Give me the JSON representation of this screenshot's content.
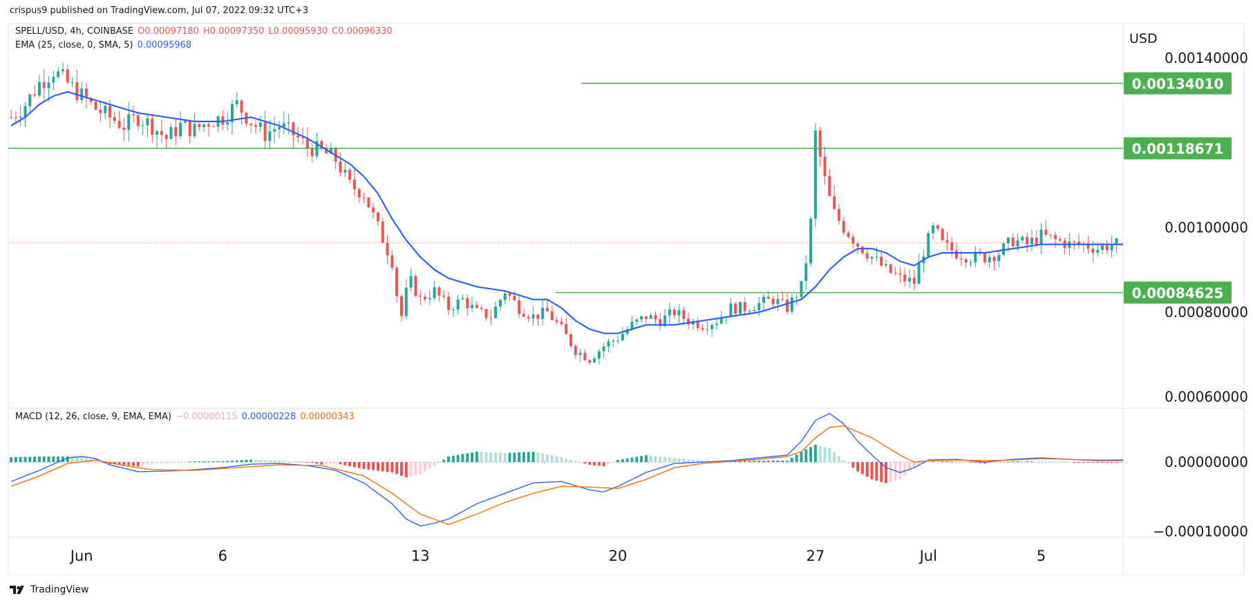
{
  "header": {
    "publisher_line": "crispus9 published on TradingView.com, Jul 07, 2022 09:32 UTC+3"
  },
  "legend": {
    "symbol": "SPELL/USD, 4h, COINBASE",
    "open": "O0.00097180",
    "high": "H0.00097350",
    "low": "L0.00095930",
    "close": "C0.00096330",
    "ema_label": "EMA (25, close, 0, SMA, 5)",
    "ema_value": "0.00095968",
    "macd_label": "MACD (12, 26, close, 9, EMA, EMA)",
    "macd_hist": "−0.00000115",
    "macd_line": "0.00000228",
    "macd_signal": "0.00000343"
  },
  "footer": {
    "brand": "TradingView"
  },
  "colors": {
    "up": "#26a69a",
    "down": "#ef5350",
    "ema": "#2962ff",
    "level": "#4caf50",
    "level_label_bg": "#4caf50",
    "macd_line": "#2962ff",
    "signal_line": "#ff6d00",
    "hist_up_strong": "#26a69a",
    "hist_up_weak": "#b2dfdb",
    "hist_down_strong": "#ef5350",
    "hist_down_weak": "#ffcdd2",
    "current_price_line": "#ef5350"
  },
  "chart_data": [
    {
      "type": "candlestick",
      "currency_label": "USD",
      "y_ticks": [
        "0.00140000",
        "0.00100000",
        "0.00080000",
        "0.00060000"
      ],
      "y_tick_values": [
        0.0014,
        0.001,
        0.0008,
        0.0006
      ],
      "ylim": [
        0.0005735,
        0.0014812
      ],
      "x_tick_labels": [
        "Jun",
        "6",
        "13",
        "20",
        "27",
        "Jul",
        "5"
      ],
      "x_tick_days": [
        1,
        6,
        13,
        20,
        27,
        31,
        35
      ],
      "x_unit": "days since May 31, 2022 (4h candles)",
      "xlim": [
        -1.6,
        37.9
      ],
      "horizontal_levels": [
        {
          "label": "0.00134010",
          "value": 0.0013401,
          "from_day": 18.7
        },
        {
          "label": "0.00118671",
          "value": 0.00118671,
          "from_day": -1.6
        },
        {
          "label": "0.00084625",
          "value": 0.00084625,
          "from_day": 17.8
        }
      ],
      "current_price": 0.0009633,
      "close_series_points": [
        [
          -1.5,
          0.00126
        ],
        [
          -1.0,
          0.00129
        ],
        [
          -0.5,
          0.00134
        ],
        [
          0.0,
          0.00137
        ],
        [
          0.5,
          0.00134
        ],
        [
          1.0,
          0.00131
        ],
        [
          1.5,
          0.00128
        ],
        [
          2.0,
          0.00126
        ],
        [
          2.5,
          0.00124
        ],
        [
          3.0,
          0.00126
        ],
        [
          3.5,
          0.00124
        ],
        [
          4.0,
          0.00121
        ],
        [
          4.5,
          0.00124
        ],
        [
          5.0,
          0.00123
        ],
        [
          5.5,
          0.00125
        ],
        [
          6.0,
          0.00126
        ],
        [
          6.5,
          0.00129
        ],
        [
          7.0,
          0.00125
        ],
        [
          7.5,
          0.00122
        ],
        [
          8.0,
          0.00124
        ],
        [
          8.5,
          0.00122
        ],
        [
          9.0,
          0.00119
        ],
        [
          9.5,
          0.00118
        ],
        [
          10.0,
          0.00116
        ],
        [
          10.5,
          0.0011
        ],
        [
          11.0,
          0.00108
        ],
        [
          11.5,
          0.001
        ],
        [
          12.0,
          0.00092
        ],
        [
          12.3,
          0.00078
        ],
        [
          12.6,
          0.00088
        ],
        [
          13.0,
          0.00083
        ],
        [
          13.5,
          0.00085
        ],
        [
          14.0,
          0.00081
        ],
        [
          14.5,
          0.00083
        ],
        [
          15.0,
          0.0008
        ],
        [
          15.5,
          0.00079
        ],
        [
          16.0,
          0.00085
        ],
        [
          16.5,
          0.00081
        ],
        [
          17.0,
          0.00079
        ],
        [
          17.5,
          0.0008
        ],
        [
          18.0,
          0.00076
        ],
        [
          18.5,
          0.00071
        ],
        [
          19.0,
          0.00069
        ],
        [
          19.5,
          0.00072
        ],
        [
          20.0,
          0.00074
        ],
        [
          20.5,
          0.00077
        ],
        [
          21.0,
          0.00079
        ],
        [
          21.5,
          0.00078
        ],
        [
          22.0,
          0.0008
        ],
        [
          22.5,
          0.00078
        ],
        [
          23.0,
          0.00077
        ],
        [
          23.5,
          0.00078
        ],
        [
          24.0,
          0.00081
        ],
        [
          24.5,
          0.00081
        ],
        [
          25.0,
          0.00082
        ],
        [
          25.5,
          0.00083
        ],
        [
          26.0,
          0.00081
        ],
        [
          26.5,
          0.00086
        ],
        [
          26.8,
          0.00097
        ],
        [
          27.0,
          0.00122
        ],
        [
          27.3,
          0.00112
        ],
        [
          27.6,
          0.00104
        ],
        [
          28.0,
          0.001
        ],
        [
          28.5,
          0.00096
        ],
        [
          29.0,
          0.00093
        ],
        [
          29.5,
          0.0009
        ],
        [
          30.0,
          0.00088
        ],
        [
          30.5,
          0.00087
        ],
        [
          30.8,
          0.00094
        ],
        [
          31.2,
          0.001
        ],
        [
          31.5,
          0.00096
        ],
        [
          32.0,
          0.00094
        ],
        [
          32.5,
          0.00093
        ],
        [
          33.0,
          0.00093
        ],
        [
          33.5,
          0.00094
        ],
        [
          34.0,
          0.00097
        ],
        [
          34.5,
          0.00096
        ],
        [
          35.0,
          0.00098
        ],
        [
          35.5,
          0.00097
        ],
        [
          36.0,
          0.00096
        ],
        [
          36.5,
          0.00096
        ],
        [
          37.0,
          0.00095
        ],
        [
          37.5,
          0.00096
        ],
        [
          37.9,
          0.00096
        ]
      ],
      "ema_series_points": [
        [
          -1.5,
          0.00124
        ],
        [
          -1.0,
          0.00126
        ],
        [
          -0.5,
          0.00129
        ],
        [
          0.0,
          0.00131
        ],
        [
          0.5,
          0.00132
        ],
        [
          1.0,
          0.00131
        ],
        [
          2.0,
          0.00129
        ],
        [
          3.0,
          0.00127
        ],
        [
          4.0,
          0.00126
        ],
        [
          5.0,
          0.00125
        ],
        [
          6.0,
          0.00125
        ],
        [
          7.0,
          0.00126
        ],
        [
          8.0,
          0.00124
        ],
        [
          9.0,
          0.00121
        ],
        [
          10.0,
          0.00117
        ],
        [
          10.5,
          0.00115
        ],
        [
          11.0,
          0.00112
        ],
        [
          11.5,
          0.00108
        ],
        [
          12.0,
          0.00102
        ],
        [
          12.5,
          0.00097
        ],
        [
          13.0,
          0.00093
        ],
        [
          13.5,
          0.0009
        ],
        [
          14.0,
          0.00088
        ],
        [
          15.0,
          0.00086
        ],
        [
          16.0,
          0.00085
        ],
        [
          17.0,
          0.00083
        ],
        [
          17.5,
          0.00083
        ],
        [
          18.0,
          0.00081
        ],
        [
          18.5,
          0.00078
        ],
        [
          19.0,
          0.00076
        ],
        [
          19.5,
          0.00075
        ],
        [
          20.0,
          0.00075
        ],
        [
          20.5,
          0.00076
        ],
        [
          21.0,
          0.00077
        ],
        [
          22.0,
          0.00077
        ],
        [
          23.0,
          0.00078
        ],
        [
          24.0,
          0.00079
        ],
        [
          25.0,
          0.0008
        ],
        [
          26.0,
          0.00082
        ],
        [
          26.5,
          0.00083
        ],
        [
          27.0,
          0.00086
        ],
        [
          27.5,
          0.0009
        ],
        [
          28.0,
          0.00093
        ],
        [
          28.5,
          0.00095
        ],
        [
          29.0,
          0.00095
        ],
        [
          29.5,
          0.00094
        ],
        [
          30.0,
          0.00092
        ],
        [
          30.5,
          0.00091
        ],
        [
          31.0,
          0.00093
        ],
        [
          31.5,
          0.00094
        ],
        [
          32.0,
          0.00094
        ],
        [
          33.0,
          0.00094
        ],
        [
          34.0,
          0.00095
        ],
        [
          35.0,
          0.00096
        ],
        [
          36.0,
          0.00096
        ],
        [
          37.0,
          0.00096
        ],
        [
          37.9,
          0.00096
        ]
      ]
    },
    {
      "type": "macd",
      "y_ticks": [
        "0.00000000",
        "−0.00010000"
      ],
      "y_tick_values": [
        0.0,
        -0.0001
      ],
      "ylim": [
        -0.0001084,
        7.77e-05
      ],
      "xlim": [
        -1.6,
        37.9
      ],
      "macd_points": [
        [
          -1.5,
          -2.8e-05
        ],
        [
          -0.5,
          -1.2e-05
        ],
        [
          0.5,
          6e-06
        ],
        [
          1.0,
          8e-06
        ],
        [
          1.5,
          5e-06
        ],
        [
          2.0,
          -4e-06
        ],
        [
          3.0,
          -1.4e-05
        ],
        [
          4.0,
          -1.3e-05
        ],
        [
          5.0,
          -1.1e-05
        ],
        [
          6.0,
          -8e-06
        ],
        [
          7.0,
          -3e-06
        ],
        [
          8.0,
          -2e-06
        ],
        [
          9.0,
          -5e-06
        ],
        [
          10.0,
          -1.2e-05
        ],
        [
          11.0,
          -3e-05
        ],
        [
          12.0,
          -6e-05
        ],
        [
          12.5,
          -8.2e-05
        ],
        [
          13.0,
          -9.2e-05
        ],
        [
          13.5,
          -8.8e-05
        ],
        [
          14.0,
          -8.2e-05
        ],
        [
          15.0,
          -6e-05
        ],
        [
          16.0,
          -4.5e-05
        ],
        [
          17.0,
          -3e-05
        ],
        [
          18.0,
          -2.8e-05
        ],
        [
          19.0,
          -4e-05
        ],
        [
          19.5,
          -4.3e-05
        ],
        [
          20.0,
          -3.5e-05
        ],
        [
          21.0,
          -1.5e-05
        ],
        [
          22.0,
          -2e-06
        ],
        [
          23.0,
          0.0
        ],
        [
          24.0,
          2e-06
        ],
        [
          25.0,
          6e-06
        ],
        [
          26.0,
          1e-05
        ],
        [
          26.5,
          3e-05
        ],
        [
          27.0,
          6e-05
        ],
        [
          27.5,
          7e-05
        ],
        [
          28.0,
          5.5e-05
        ],
        [
          28.5,
          3e-05
        ],
        [
          29.0,
          1e-05
        ],
        [
          29.5,
          -8e-06
        ],
        [
          30.0,
          -1.5e-05
        ],
        [
          30.5,
          -8e-06
        ],
        [
          31.0,
          3e-06
        ],
        [
          32.0,
          4e-06
        ],
        [
          33.0,
          0.0
        ],
        [
          34.0,
          4e-06
        ],
        [
          35.0,
          6e-06
        ],
        [
          36.0,
          4e-06
        ],
        [
          37.0,
          2e-06
        ],
        [
          37.9,
          2.3e-06
        ]
      ],
      "signal_points": [
        [
          -1.5,
          -3.5e-05
        ],
        [
          -0.5,
          -2e-05
        ],
        [
          0.5,
          -2e-06
        ],
        [
          1.5,
          3e-06
        ],
        [
          2.5,
          -5e-06
        ],
        [
          3.5,
          -1.1e-05
        ],
        [
          5.0,
          -1.2e-05
        ],
        [
          6.5,
          -8e-06
        ],
        [
          8.0,
          -4e-06
        ],
        [
          9.5,
          -5e-06
        ],
        [
          11.0,
          -2e-05
        ],
        [
          12.0,
          -4.5e-05
        ],
        [
          13.0,
          -7.5e-05
        ],
        [
          14.0,
          -9e-05
        ],
        [
          15.0,
          -7.5e-05
        ],
        [
          16.0,
          -5.8e-05
        ],
        [
          17.0,
          -4.5e-05
        ],
        [
          18.0,
          -3.5e-05
        ],
        [
          19.0,
          -3.6e-05
        ],
        [
          20.0,
          -3.8e-05
        ],
        [
          21.0,
          -2.5e-05
        ],
        [
          22.0,
          -8e-06
        ],
        [
          23.0,
          -2e-06
        ],
        [
          24.0,
          1e-06
        ],
        [
          25.0,
          4e-06
        ],
        [
          26.0,
          8e-06
        ],
        [
          26.5,
          1.5e-05
        ],
        [
          27.0,
          3.5e-05
        ],
        [
          27.5,
          5e-05
        ],
        [
          28.0,
          5.2e-05
        ],
        [
          29.0,
          3.5e-05
        ],
        [
          30.0,
          1e-05
        ],
        [
          30.5,
          0.0
        ],
        [
          31.0,
          2e-06
        ],
        [
          32.0,
          3e-06
        ],
        [
          33.0,
          2e-06
        ],
        [
          34.0,
          3e-06
        ],
        [
          35.0,
          5e-06
        ],
        [
          36.0,
          4e-06
        ],
        [
          37.0,
          3e-06
        ],
        [
          37.9,
          3.4e-06
        ]
      ]
    }
  ]
}
